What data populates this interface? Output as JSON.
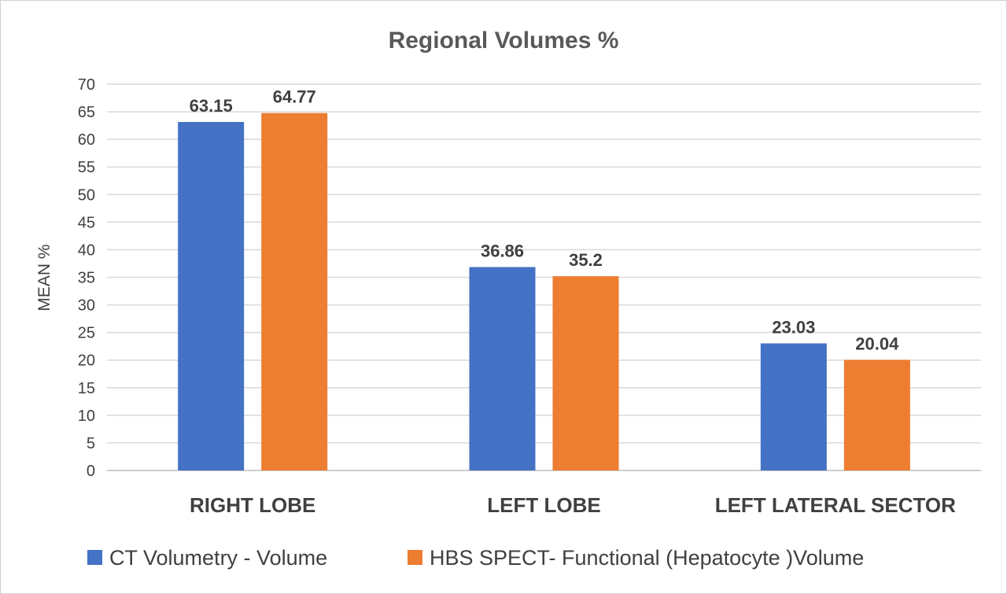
{
  "chart_data": {
    "type": "bar",
    "title": "Regional Volumes %",
    "xlabel": "",
    "ylabel": "MEAN %",
    "ylim": [
      0,
      70
    ],
    "y_ticks": [
      0,
      5,
      10,
      15,
      20,
      25,
      30,
      35,
      40,
      45,
      50,
      55,
      60,
      65,
      70
    ],
    "grid": true,
    "legend_position": "bottom",
    "categories": [
      "RIGHT LOBE",
      "LEFT LOBE",
      "LEFT LATERAL SECTOR"
    ],
    "series": [
      {
        "name": "CT Volumetry -  Volume",
        "values": [
          63.15,
          36.86,
          23.03
        ],
        "labels": [
          "63.15",
          "36.86",
          "23.03"
        ],
        "color": "#4472C4"
      },
      {
        "name": "HBS SPECT-   Functional (Hepatocyte )Volume",
        "values": [
          64.77,
          35.2,
          20.04
        ],
        "labels": [
          "64.77",
          "35.2",
          "20.04"
        ],
        "color": "#ED7D31"
      }
    ]
  }
}
